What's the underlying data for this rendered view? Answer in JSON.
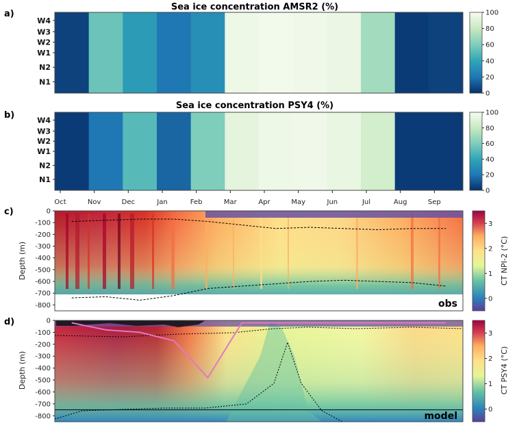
{
  "chart_data": [
    {
      "panel": "a)",
      "type": "heatmap",
      "title": "Sea ice concentration AMSR2 (%)",
      "y_categories": [
        "W4",
        "W3",
        "W2",
        "W1",
        "N2",
        "N1"
      ],
      "x_tick_labels": [
        "Oct",
        "Nov",
        "Dec",
        "Jan",
        "Feb",
        "Mar",
        "Apr",
        "May",
        "Jun",
        "Jul",
        "Aug",
        "Sep"
      ],
      "colorbar": {
        "ticks": [
          "0",
          "20",
          "40",
          "60",
          "80",
          "100"
        ],
        "range": [
          0,
          100
        ]
      },
      "concentration_by_month": [
        5,
        55,
        35,
        20,
        30,
        96,
        98,
        97,
        95,
        70,
        3,
        5
      ],
      "colors": [
        "#08306b",
        "#1f78b4",
        "#41b6c4",
        "#a1dab4",
        "#e5f5e0",
        "#f7fcf0"
      ]
    },
    {
      "panel": "b)",
      "type": "heatmap",
      "title": "Sea ice concentration PSY4 (%)",
      "y_categories": [
        "W4",
        "W3",
        "W2",
        "W1",
        "N2",
        "N1"
      ],
      "x_tick_labels": [
        "Oct",
        "Nov",
        "Dec",
        "Jan",
        "Feb",
        "Mar",
        "Apr",
        "May",
        "Jun",
        "Jul",
        "Aug",
        "Sep"
      ],
      "colorbar": {
        "ticks": [
          "0",
          "20",
          "40",
          "60",
          "80",
          "100"
        ],
        "range": [
          0,
          100
        ]
      },
      "concentration_by_month": [
        3,
        20,
        50,
        15,
        60,
        92,
        96,
        97,
        94,
        85,
        3,
        3
      ]
    },
    {
      "panel": "c)",
      "type": "heatmap",
      "ylabel": "Depth (m)",
      "y_tick_labels": [
        "0",
        "-100",
        "-200",
        "-300",
        "-400",
        "-500",
        "-600",
        "-700",
        "-800"
      ],
      "ylim": [
        -850,
        0
      ],
      "colorbar": {
        "label": "CT NPI-2 (°C)",
        "ticks": [
          "0",
          "1",
          "2",
          "3"
        ],
        "range": [
          -0.5,
          3.5
        ]
      },
      "annotation": "obs",
      "upper_isoline_depth_m": [
        -90,
        -80,
        -70,
        -70,
        -90,
        -120,
        -150,
        -140,
        -150,
        -160,
        -150,
        -150
      ],
      "lower_isoline_depth_m": [
        -740,
        -730,
        -760,
        -720,
        -660,
        -640,
        -620,
        -600,
        -590,
        -600,
        -610,
        -640
      ]
    },
    {
      "panel": "d)",
      "type": "heatmap",
      "ylabel": "Depth (m)",
      "y_tick_labels": [
        "0",
        "-100",
        "-200",
        "-300",
        "-400",
        "-500",
        "-600",
        "-700",
        "-800"
      ],
      "ylim": [
        -850,
        0
      ],
      "colorbar": {
        "label": "CT PSY4 (°C)",
        "ticks": [
          "0",
          "1",
          "2",
          "3"
        ],
        "range": [
          -0.5,
          3.5
        ]
      },
      "annotation": "model",
      "reference_line_depth_m": -750,
      "mixed_layer_depth_m": [
        -20,
        -80,
        -100,
        -170,
        -480,
        -20,
        -20,
        -20,
        -20,
        -20,
        -20,
        -20
      ]
    }
  ]
}
